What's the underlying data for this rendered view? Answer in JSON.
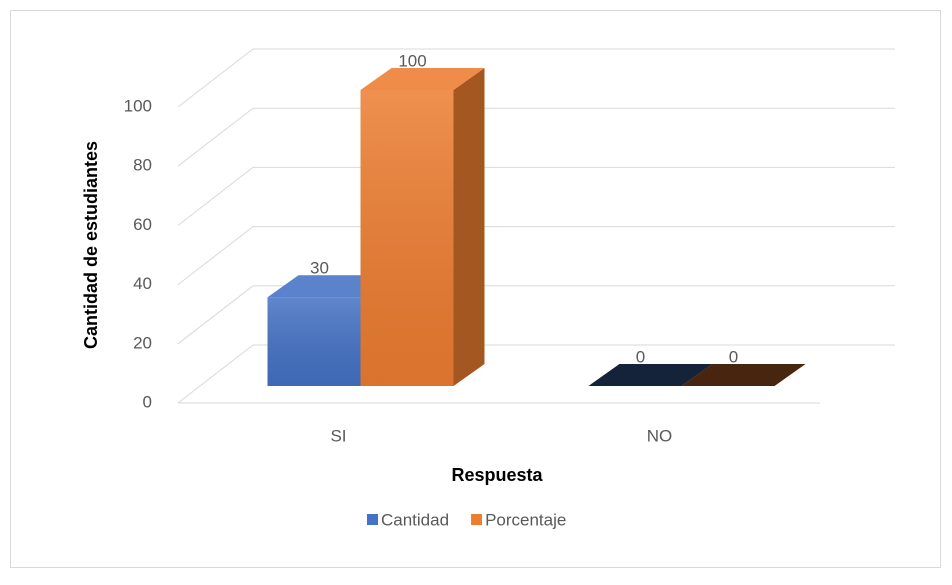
{
  "chart_data": {
    "type": "bar3d",
    "categories": [
      "SI",
      "NO"
    ],
    "series": [
      {
        "name": "Cantidad",
        "color": "#4472c4",
        "values": [
          30,
          0
        ]
      },
      {
        "name": "Porcentaje",
        "color": "#ed7d31",
        "values": [
          100,
          0
        ]
      }
    ],
    "value_labels": [
      [
        "30",
        "0"
      ],
      [
        "100",
        "0"
      ]
    ],
    "ylim": [
      0,
      100
    ],
    "yticks": [
      0,
      20,
      40,
      60,
      80,
      100
    ],
    "grid": true,
    "xlabel": "Respuesta",
    "ylabel": "Cantidad de estudiantes",
    "legend": "bottom"
  }
}
